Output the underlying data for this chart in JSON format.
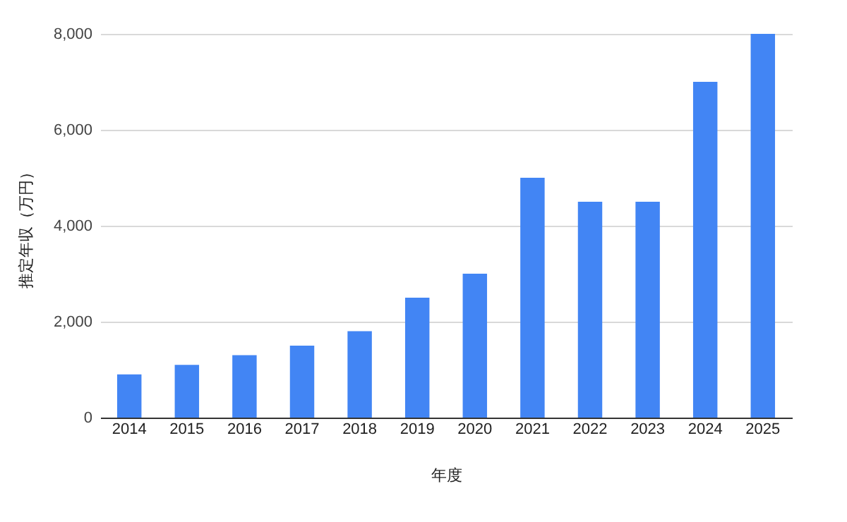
{
  "chart_data": {
    "type": "bar",
    "xlabel": "年度",
    "ylabel": "推定年収（万円）",
    "categories": [
      "2014",
      "2015",
      "2016",
      "2017",
      "2018",
      "2019",
      "2020",
      "2021",
      "2022",
      "2023",
      "2024",
      "2025"
    ],
    "values": [
      900,
      1100,
      1300,
      1500,
      1800,
      2500,
      3000,
      5000,
      4500,
      4500,
      7000,
      8000
    ],
    "color": "#4285f4",
    "ylim": [
      0,
      8000
    ],
    "yticks": [
      {
        "value": 0,
        "label": "0"
      },
      {
        "value": 2000,
        "label": "2,000"
      },
      {
        "value": 4000,
        "label": "4,000"
      },
      {
        "value": 6000,
        "label": "6,000"
      },
      {
        "value": 8000,
        "label": "8,000"
      }
    ],
    "grid": "y"
  }
}
